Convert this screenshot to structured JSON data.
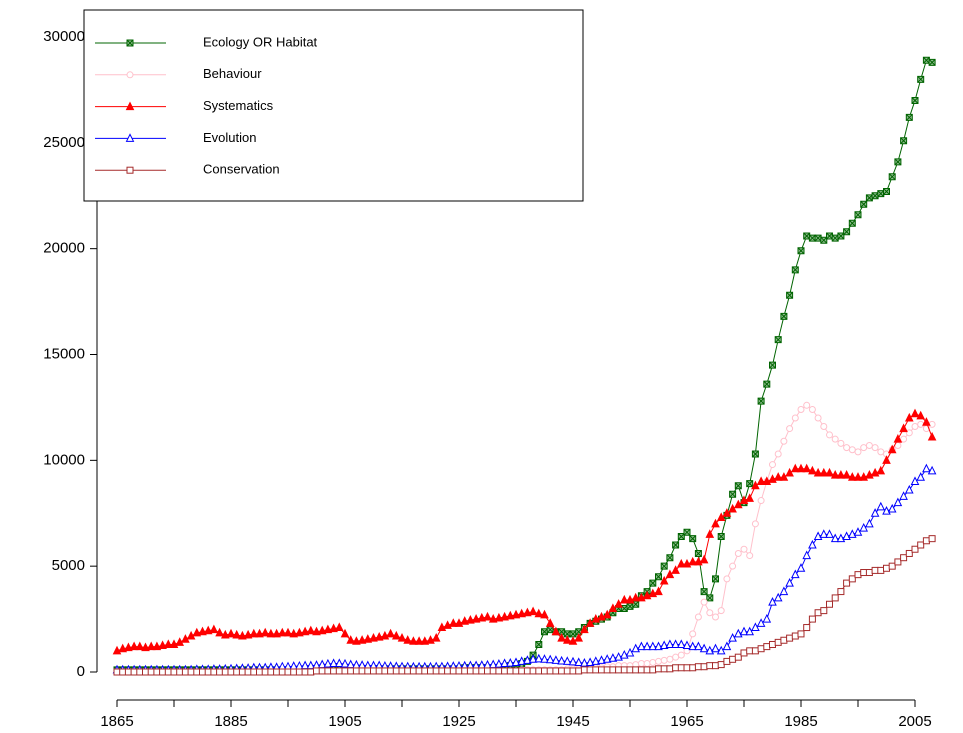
{
  "chart_data": {
    "type": "line",
    "x": [
      1865,
      1866,
      1867,
      1868,
      1869,
      1870,
      1871,
      1872,
      1873,
      1874,
      1875,
      1876,
      1877,
      1878,
      1879,
      1880,
      1881,
      1882,
      1883,
      1884,
      1885,
      1886,
      1887,
      1888,
      1889,
      1890,
      1891,
      1892,
      1893,
      1894,
      1895,
      1896,
      1897,
      1898,
      1899,
      1900,
      1901,
      1902,
      1903,
      1904,
      1905,
      1906,
      1907,
      1908,
      1909,
      1910,
      1911,
      1912,
      1913,
      1914,
      1915,
      1916,
      1917,
      1918,
      1919,
      1920,
      1921,
      1922,
      1923,
      1924,
      1925,
      1926,
      1927,
      1928,
      1929,
      1930,
      1931,
      1932,
      1933,
      1934,
      1935,
      1936,
      1937,
      1938,
      1939,
      1940,
      1941,
      1942,
      1943,
      1944,
      1945,
      1946,
      1947,
      1948,
      1949,
      1950,
      1951,
      1952,
      1953,
      1954,
      1955,
      1956,
      1957,
      1958,
      1959,
      1960,
      1961,
      1962,
      1963,
      1964,
      1965,
      1966,
      1967,
      1968,
      1969,
      1970,
      1971,
      1972,
      1973,
      1974,
      1975,
      1976,
      1977,
      1978,
      1979,
      1980,
      1981,
      1982,
      1983,
      1984,
      1985,
      1986,
      1987,
      1988,
      1989,
      1990,
      1991,
      1992,
      1993,
      1994,
      1995,
      1996,
      1997,
      1998,
      1999,
      2000,
      2001,
      2002,
      2003,
      2004,
      2005,
      2006,
      2007,
      2008
    ],
    "series": [
      {
        "name": "Ecology OR Habitat",
        "color": "#006400",
        "marker": "crossed-square",
        "values": [
          100,
          100,
          100,
          100,
          100,
          100,
          100,
          100,
          100,
          100,
          100,
          100,
          100,
          100,
          100,
          100,
          100,
          100,
          100,
          100,
          100,
          100,
          100,
          100,
          100,
          100,
          100,
          100,
          100,
          100,
          100,
          100,
          100,
          100,
          100,
          150,
          150,
          150,
          150,
          150,
          150,
          150,
          150,
          150,
          150,
          150,
          150,
          150,
          150,
          150,
          150,
          150,
          150,
          150,
          150,
          150,
          150,
          150,
          150,
          150,
          150,
          200,
          200,
          200,
          200,
          200,
          200,
          200,
          200,
          300,
          300,
          400,
          500,
          800,
          1300,
          1900,
          2000,
          1900,
          1900,
          1800,
          1800,
          1900,
          2100,
          2300,
          2400,
          2500,
          2600,
          2800,
          3000,
          3000,
          3100,
          3200,
          3600,
          3800,
          4200,
          4500,
          5000,
          5400,
          6000,
          6400,
          6600,
          6300,
          5600,
          3800,
          3500,
          4400,
          6400,
          7400,
          8400,
          8800,
          8000,
          8900,
          10300,
          12800,
          13600,
          14500,
          15700,
          16800,
          17800,
          19000,
          19900,
          20600,
          20500,
          20500,
          20400,
          20600,
          20500,
          20600,
          20800,
          21200,
          21600,
          22100,
          22400,
          22500,
          22600,
          22700,
          23400,
          24100,
          25100,
          26200,
          27000,
          28000,
          28900,
          28800
        ]
      },
      {
        "name": "Behaviour",
        "color": "#ffc0cb",
        "marker": "circle",
        "values": [
          50,
          50,
          50,
          50,
          50,
          50,
          50,
          50,
          50,
          50,
          50,
          50,
          50,
          50,
          50,
          50,
          50,
          50,
          50,
          50,
          50,
          50,
          50,
          50,
          50,
          50,
          50,
          50,
          50,
          50,
          50,
          50,
          50,
          50,
          50,
          50,
          50,
          50,
          50,
          50,
          50,
          50,
          50,
          50,
          50,
          50,
          50,
          50,
          50,
          50,
          50,
          50,
          50,
          50,
          50,
          50,
          50,
          50,
          50,
          50,
          50,
          50,
          50,
          50,
          50,
          50,
          50,
          50,
          50,
          50,
          50,
          100,
          100,
          100,
          100,
          100,
          100,
          100,
          100,
          150,
          150,
          150,
          200,
          200,
          200,
          200,
          250,
          250,
          300,
          300,
          300,
          350,
          400,
          400,
          450,
          500,
          550,
          600,
          700,
          800,
          1000,
          1800,
          2600,
          3300,
          2800,
          2600,
          2900,
          4400,
          5000,
          5600,
          5800,
          5500,
          7000,
          8100,
          9000,
          9800,
          10300,
          10900,
          11500,
          12000,
          12400,
          12600,
          12400,
          12000,
          11600,
          11200,
          11000,
          10800,
          10600,
          10500,
          10400,
          10600,
          10700,
          10600,
          10400,
          10300,
          10500,
          10700,
          11000,
          11300,
          11600,
          11700,
          11500,
          11700
        ]
      },
      {
        "name": "Systematics",
        "color": "#ff0000",
        "marker": "filled-triangle",
        "values": [
          1000,
          1100,
          1150,
          1200,
          1200,
          1150,
          1200,
          1200,
          1250,
          1300,
          1300,
          1400,
          1550,
          1700,
          1850,
          1900,
          1950,
          2000,
          1850,
          1750,
          1800,
          1750,
          1700,
          1750,
          1800,
          1800,
          1850,
          1800,
          1800,
          1850,
          1850,
          1800,
          1850,
          1900,
          1950,
          1900,
          1950,
          2000,
          2050,
          2100,
          1800,
          1500,
          1450,
          1500,
          1550,
          1600,
          1650,
          1700,
          1800,
          1700,
          1600,
          1500,
          1450,
          1450,
          1450,
          1500,
          1600,
          2100,
          2200,
          2300,
          2300,
          2400,
          2450,
          2500,
          2550,
          2600,
          2500,
          2550,
          2600,
          2650,
          2700,
          2750,
          2800,
          2850,
          2750,
          2700,
          2300,
          1900,
          1600,
          1500,
          1450,
          1600,
          2000,
          2300,
          2500,
          2600,
          2700,
          3000,
          3200,
          3400,
          3400,
          3500,
          3500,
          3600,
          3700,
          3800,
          4300,
          4600,
          4800,
          5100,
          5100,
          5200,
          5200,
          5300,
          6500,
          7000,
          7300,
          7500,
          7700,
          7900,
          8100,
          8200,
          8800,
          9000,
          9000,
          9100,
          9200,
          9200,
          9400,
          9600,
          9600,
          9600,
          9500,
          9400,
          9400,
          9400,
          9300,
          9300,
          9300,
          9200,
          9200,
          9200,
          9300,
          9400,
          9500,
          10000,
          10500,
          11000,
          11500,
          12000,
          12200,
          12100,
          11800,
          11100
        ]
      },
      {
        "name": "Evolution",
        "color": "#0000ff",
        "marker": "triangle",
        "values": [
          100,
          100,
          100,
          100,
          100,
          100,
          100,
          100,
          100,
          100,
          100,
          100,
          100,
          100,
          120,
          120,
          120,
          130,
          130,
          140,
          150,
          160,
          170,
          180,
          200,
          200,
          200,
          220,
          220,
          250,
          250,
          270,
          280,
          300,
          300,
          320,
          350,
          380,
          400,
          400,
          380,
          350,
          330,
          320,
          300,
          300,
          300,
          280,
          270,
          260,
          250,
          250,
          240,
          240,
          240,
          240,
          250,
          250,
          260,
          270,
          280,
          290,
          300,
          300,
          320,
          330,
          350,
          370,
          400,
          420,
          450,
          500,
          550,
          600,
          620,
          600,
          580,
          550,
          520,
          500,
          480,
          450,
          420,
          450,
          500,
          550,
          600,
          650,
          700,
          800,
          900,
          1100,
          1200,
          1200,
          1200,
          1200,
          1250,
          1300,
          1300,
          1300,
          1250,
          1200,
          1200,
          1100,
          1000,
          1100,
          1000,
          1200,
          1600,
          1800,
          1900,
          1900,
          2100,
          2300,
          2500,
          3300,
          3500,
          3800,
          4200,
          4600,
          4900,
          5500,
          6000,
          6400,
          6500,
          6500,
          6300,
          6300,
          6400,
          6500,
          6600,
          6800,
          7000,
          7500,
          7800,
          7600,
          7700,
          8000,
          8300,
          8600,
          9000,
          9200,
          9600,
          9500
        ]
      },
      {
        "name": "Conservation",
        "color": "#a52a2a",
        "marker": "square",
        "values": [
          0,
          0,
          0,
          0,
          0,
          0,
          0,
          0,
          0,
          0,
          0,
          0,
          0,
          0,
          0,
          0,
          0,
          0,
          0,
          0,
          0,
          0,
          0,
          0,
          0,
          0,
          0,
          0,
          0,
          0,
          0,
          0,
          0,
          0,
          0,
          50,
          50,
          50,
          50,
          50,
          50,
          50,
          50,
          50,
          50,
          50,
          50,
          50,
          50,
          50,
          50,
          50,
          50,
          50,
          50,
          50,
          50,
          50,
          50,
          50,
          50,
          50,
          50,
          50,
          50,
          50,
          50,
          50,
          50,
          50,
          50,
          50,
          50,
          50,
          50,
          50,
          50,
          50,
          50,
          50,
          50,
          50,
          100,
          100,
          100,
          100,
          100,
          100,
          100,
          100,
          100,
          100,
          100,
          100,
          100,
          150,
          150,
          150,
          200,
          200,
          200,
          200,
          250,
          250,
          300,
          300,
          350,
          500,
          600,
          700,
          900,
          1000,
          1000,
          1100,
          1200,
          1300,
          1400,
          1500,
          1600,
          1700,
          1800,
          2100,
          2500,
          2800,
          2900,
          3200,
          3500,
          3800,
          4200,
          4400,
          4600,
          4700,
          4700,
          4800,
          4800,
          4900,
          5000,
          5200,
          5400,
          5600,
          5800,
          6000,
          6200,
          6300
        ]
      }
    ],
    "xlim": [
      1865,
      2005
    ],
    "xticks": [
      1865,
      1885,
      1905,
      1925,
      1945,
      1965,
      1985,
      2005
    ],
    "xminorticks": [
      1875,
      1895,
      1915,
      1935,
      1955,
      1975,
      1995
    ],
    "ylim": [
      0,
      30000
    ],
    "yticks": [
      0,
      5000,
      10000,
      15000,
      20000,
      25000,
      30000
    ],
    "legend": "top-left"
  }
}
